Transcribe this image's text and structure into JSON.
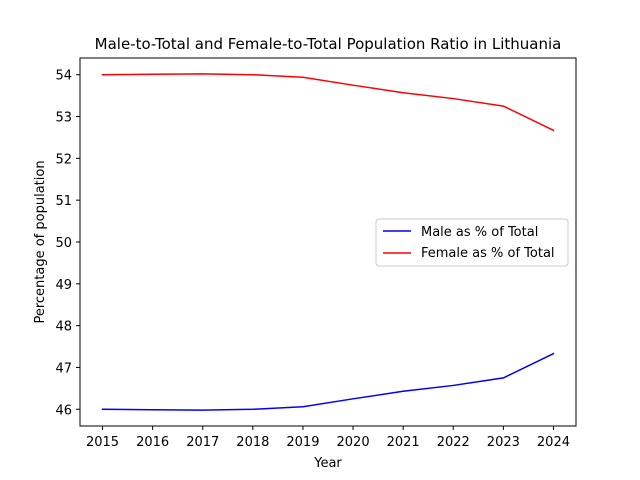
{
  "chart_data": {
    "type": "line",
    "title": "Male-to-Total and Female-to-Total Population Ratio in Lithuania",
    "xlabel": "Year",
    "ylabel": "Percentage of population",
    "x": [
      2015,
      2016,
      2017,
      2018,
      2019,
      2020,
      2021,
      2022,
      2023,
      2024
    ],
    "x_ticks": [
      "2015",
      "2016",
      "2017",
      "2018",
      "2019",
      "2020",
      "2021",
      "2022",
      "2023",
      "2024"
    ],
    "y_ticks": [
      "46",
      "47",
      "48",
      "49",
      "50",
      "51",
      "52",
      "53",
      "54"
    ],
    "xlim": [
      2014.55,
      2024.45
    ],
    "ylim": [
      45.6,
      54.4
    ],
    "grid": false,
    "legend_position": "center-right",
    "series": [
      {
        "name": "Male as % of Total",
        "color": "#0000ff",
        "values": [
          46.0,
          45.99,
          45.98,
          46.0,
          46.06,
          46.25,
          46.43,
          46.57,
          46.75,
          47.33
        ]
      },
      {
        "name": "Female as % of Total",
        "color": "#ff0000",
        "values": [
          54.0,
          54.01,
          54.02,
          54.0,
          53.94,
          53.75,
          53.57,
          53.43,
          53.25,
          52.67
        ]
      }
    ]
  }
}
